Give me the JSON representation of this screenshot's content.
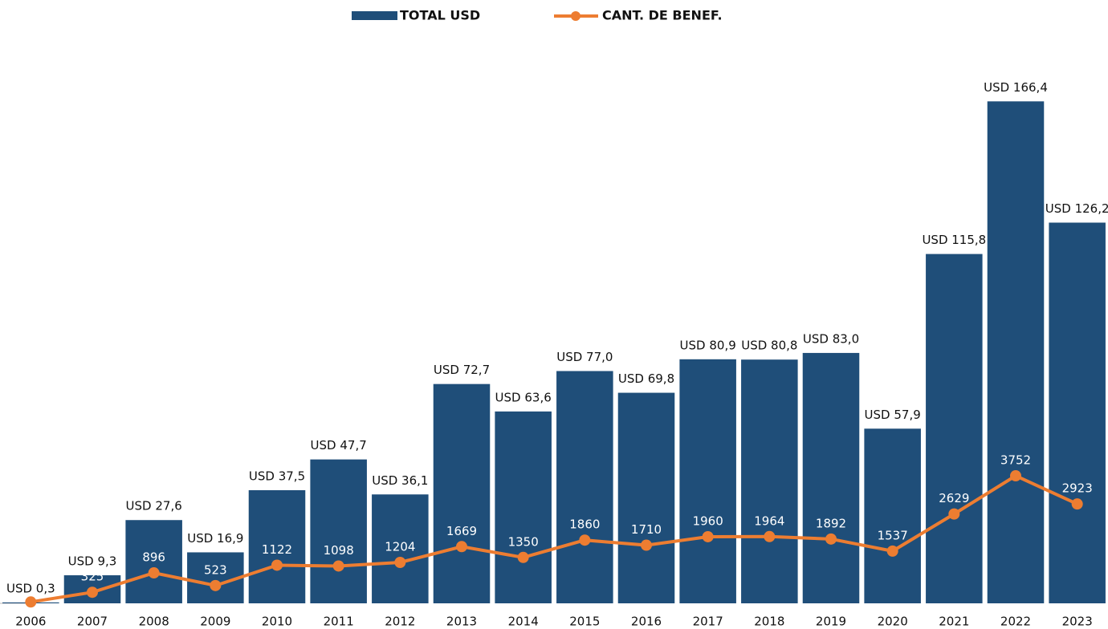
{
  "chart_data": {
    "type": "bar-line",
    "categories": [
      "2006",
      "2007",
      "2008",
      "2009",
      "2010",
      "2011",
      "2012",
      "2013",
      "2014",
      "2015",
      "2016",
      "2017",
      "2018",
      "2019",
      "2020",
      "2021",
      "2022",
      "2023"
    ],
    "series": [
      {
        "name": "TOTAL USD",
        "type": "bar",
        "color": "#1f4e79",
        "values": [
          0.3,
          9.3,
          27.6,
          16.9,
          37.5,
          47.7,
          36.1,
          72.7,
          63.6,
          77.0,
          69.8,
          80.9,
          80.8,
          83.0,
          57.9,
          115.8,
          166.4,
          126.2
        ],
        "value_labels": [
          "USD 0,3",
          "USD 9,3",
          "USD 27,6",
          "USD 16,9",
          "USD 37,5",
          "USD 47,7",
          "USD 36,1",
          "USD 72,7",
          "USD 63,6",
          "USD 77,0",
          "USD 69,8",
          "USD 80,9",
          "USD 80,8",
          "USD 83,0",
          "USD 57,9",
          "USD 115,8",
          "USD 166,4",
          "USD 126,2"
        ]
      },
      {
        "name": "CANT. DE BENEF.",
        "type": "line",
        "axis": "y2",
        "color": "#ed7d31",
        "values": [
          40,
          325,
          896,
          523,
          1122,
          1098,
          1204,
          1669,
          1350,
          1860,
          1710,
          1960,
          1964,
          1892,
          1537,
          2629,
          3752,
          2923
        ],
        "value_labels": [
          null,
          "325",
          "896",
          "523",
          "1122",
          "1098",
          "1204",
          "1669",
          "1350",
          "1860",
          "1710",
          "1960",
          "1964",
          "1892",
          "1537",
          "2629",
          "3752",
          "2923"
        ]
      }
    ],
    "ylim": [
      0,
      200
    ],
    "y2lim": [
      0,
      17750
    ],
    "legend": "top"
  }
}
